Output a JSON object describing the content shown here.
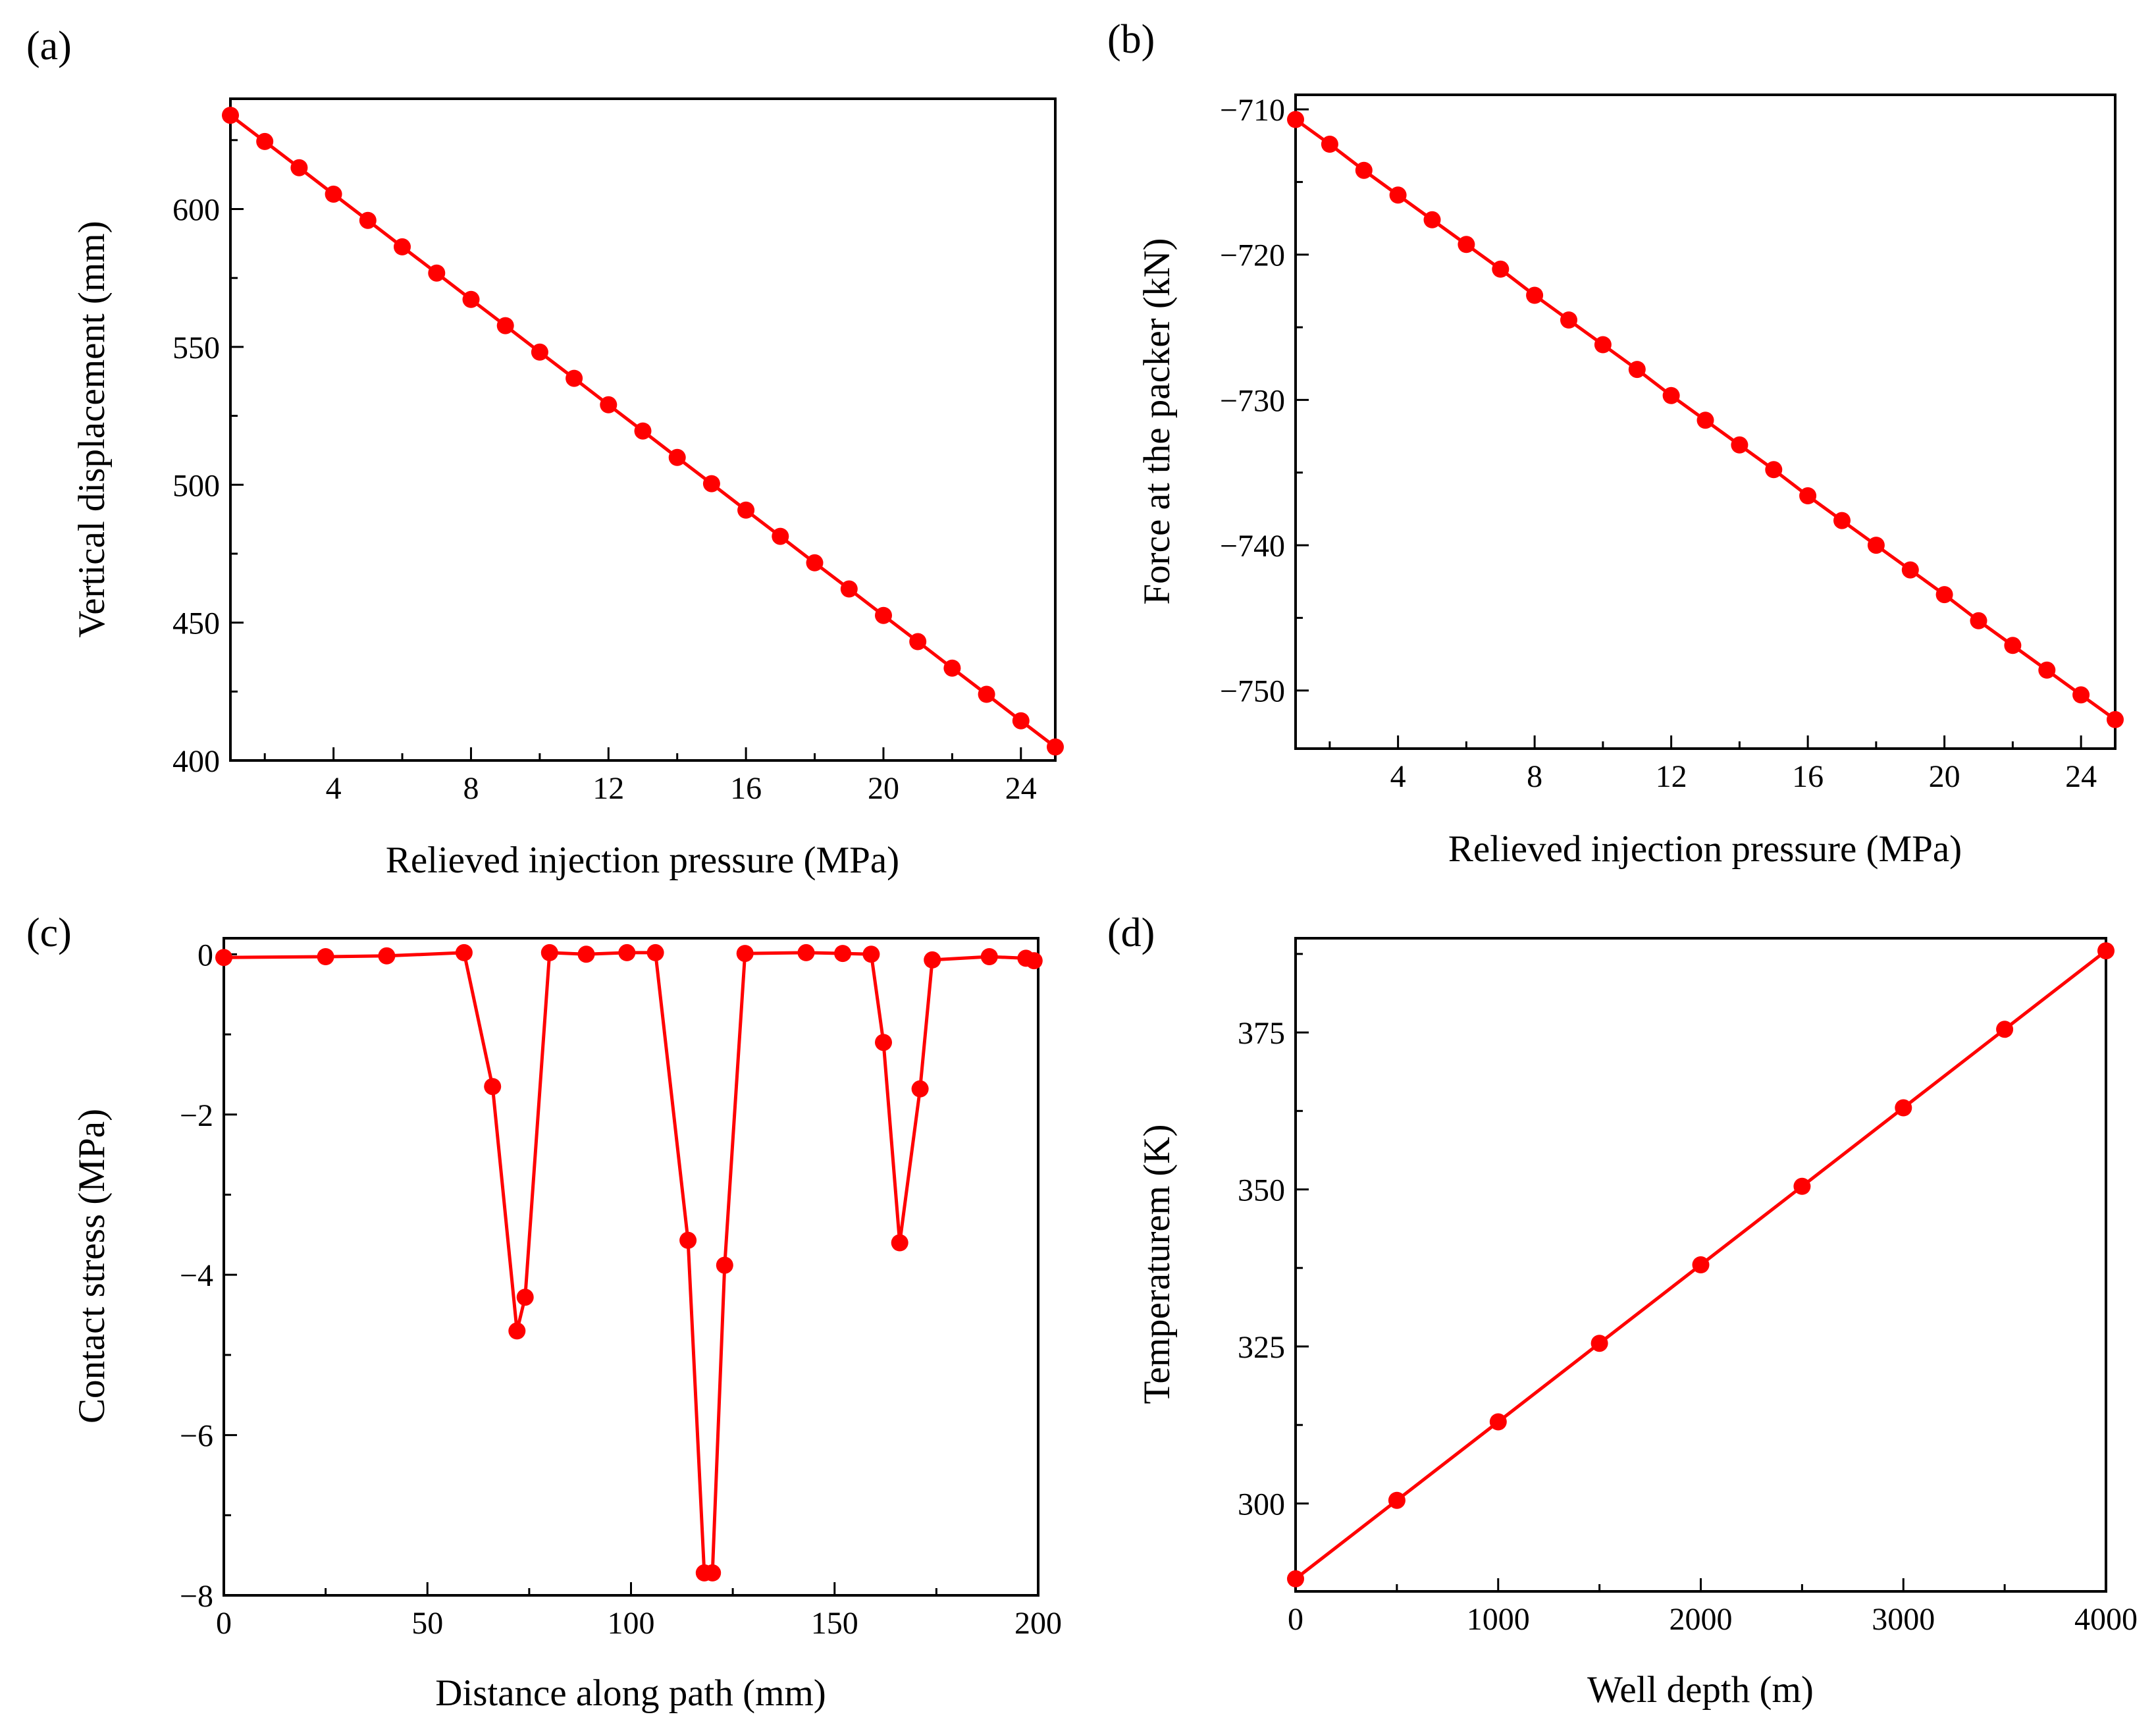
{
  "colors": {
    "series": "#ff0000",
    "axis": "#000000",
    "background": "#ffffff"
  },
  "chart_data": [
    {
      "id": "a",
      "panel_label": "(a)",
      "type": "line",
      "markers": true,
      "xlabel": "Relieved injection pressure (MPa)",
      "ylabel": "Vertical displacement (mm)",
      "xlim": [
        1,
        25
      ],
      "ylim": [
        400,
        640
      ],
      "xticks": [
        4,
        8,
        12,
        16,
        20,
        24
      ],
      "xtick_labels": [
        "4",
        "8",
        "12",
        "16",
        "20",
        "24"
      ],
      "yticks": [
        400,
        450,
        500,
        550,
        600
      ],
      "ytick_labels": [
        "400",
        "450",
        "500",
        "550",
        "600"
      ],
      "x_minor_step": 2,
      "y_minor_step": 25,
      "series": [
        {
          "x": [
            1,
            2,
            3,
            4,
            5,
            6,
            7,
            8,
            9,
            10,
            11,
            12,
            13,
            14,
            15,
            16,
            17,
            18,
            19,
            20,
            21,
            22,
            23,
            24,
            25
          ],
          "y": [
            634,
            624.5,
            615,
            605.4,
            595.9,
            586.3,
            576.8,
            567.2,
            557.7,
            548.1,
            538.6,
            529,
            519.5,
            509.9,
            500.4,
            490.8,
            481.3,
            471.7,
            462.2,
            452.6,
            443.1,
            433.5,
            424,
            414.4,
            404.9
          ]
        }
      ]
    },
    {
      "id": "b",
      "panel_label": "(b)",
      "type": "line",
      "markers": true,
      "xlabel": "Relieved injection pressure (MPa)",
      "ylabel": "Force at the packer (kN)",
      "xlim": [
        1,
        25
      ],
      "ylim": [
        -754,
        -709
      ],
      "xticks": [
        4,
        8,
        12,
        16,
        20,
        24
      ],
      "xtick_labels": [
        "4",
        "8",
        "12",
        "16",
        "20",
        "24"
      ],
      "yticks": [
        -750,
        -740,
        -730,
        -720,
        -710
      ],
      "ytick_labels": [
        "−750",
        "−740",
        "−730",
        "−720",
        "−710"
      ],
      "x_minor_step": 2,
      "y_minor_step": 5,
      "series": [
        {
          "x": [
            1,
            2,
            3,
            4,
            5,
            6,
            7,
            8,
            9,
            10,
            11,
            12,
            13,
            14,
            15,
            16,
            17,
            18,
            19,
            20,
            21,
            22,
            23,
            24,
            25
          ],
          "y": [
            -710.7,
            -712.4,
            -714.2,
            -715.9,
            -717.6,
            -719.3,
            -721,
            -722.8,
            -724.5,
            -726.2,
            -727.9,
            -729.7,
            -731.4,
            -733.1,
            -734.8,
            -736.6,
            -738.3,
            -740,
            -741.7,
            -743.4,
            -745.2,
            -746.9,
            -748.6,
            -750.3,
            -752
          ]
        }
      ]
    },
    {
      "id": "c",
      "panel_label": "(c)",
      "type": "line",
      "markers": true,
      "xlabel": "Distance along path (mm)",
      "ylabel": "Contact stress (MPa)",
      "xlim": [
        0,
        200
      ],
      "ylim": [
        -8,
        0.2
      ],
      "xticks": [
        0,
        50,
        100,
        150,
        200
      ],
      "xtick_labels": [
        "0",
        "50",
        "100",
        "150",
        "200"
      ],
      "yticks": [
        -8,
        -6,
        -4,
        -2,
        0
      ],
      "ytick_labels": [
        "−8",
        "−6",
        "−4",
        "−2",
        "0"
      ],
      "x_minor_step": 25,
      "y_minor_step": 1,
      "series": [
        {
          "x": [
            0,
            25,
            40,
            59,
            66,
            72,
            74,
            80,
            89,
            99,
            106,
            114,
            118,
            120,
            123,
            128,
            143,
            152,
            159,
            162,
            166,
            171,
            174,
            188,
            197,
            199
          ],
          "y": [
            -0.04,
            -0.03,
            -0.02,
            0.02,
            -1.65,
            -4.7,
            -4.28,
            0.02,
            0,
            0.02,
            0.02,
            -3.57,
            -7.72,
            -7.72,
            -3.88,
            0.01,
            0.02,
            0.01,
            0,
            -1.1,
            -3.6,
            -1.68,
            -0.07,
            -0.03,
            -0.05,
            -0.08
          ]
        }
      ]
    },
    {
      "id": "d",
      "panel_label": "(d)",
      "type": "line",
      "markers": true,
      "xlabel": "Well depth (m)",
      "ylabel": "Temperaturem (K)",
      "xlim": [
        0,
        4000
      ],
      "ylim": [
        286,
        390
      ],
      "xticks": [
        0,
        1000,
        2000,
        3000,
        4000
      ],
      "xtick_labels": [
        "0",
        "1000",
        "2000",
        "3000",
        "4000"
      ],
      "yticks": [
        300,
        325,
        350,
        375
      ],
      "ytick_labels": [
        "300",
        "325",
        "350",
        "375"
      ],
      "x_minor_step": 500,
      "y_minor_step": 12.5,
      "series": [
        {
          "x": [
            0,
            500,
            1000,
            1500,
            2000,
            2500,
            3000,
            3500,
            4000
          ],
          "y": [
            288,
            300.5,
            313,
            325.5,
            338,
            350.5,
            363,
            375.5,
            388
          ]
        }
      ]
    }
  ]
}
